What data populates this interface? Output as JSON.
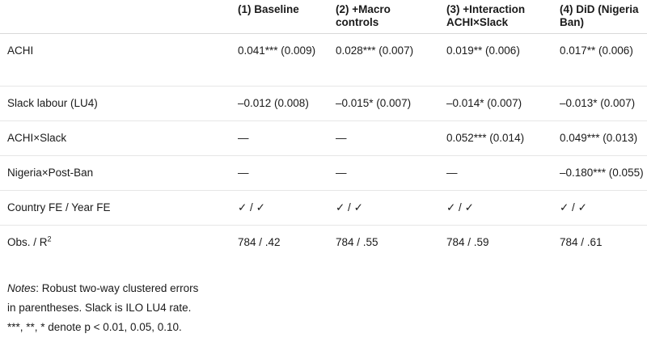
{
  "table": {
    "headers": [
      "",
      "(1) Baseline",
      "(2) +Macro controls",
      "(3) +Interaction ACHI×Slack",
      "(4) DiD (Nigeria Ban)"
    ],
    "rows": [
      {
        "label": "ACHI",
        "cells": [
          "0.041*** (0.009)",
          "0.028*** (0.007)",
          "0.019** (0.006)",
          "0.017** (0.006)"
        ]
      },
      {
        "label": "Slack labour (LU4)",
        "cells": [
          "–0.012 (0.008)",
          "–0.015* (0.007)",
          "–0.014* (0.007)",
          "–0.013* (0.007)"
        ]
      },
      {
        "label": "ACHI×Slack",
        "cells": [
          "—",
          "—",
          "0.052*** (0.014)",
          "0.049*** (0.013)"
        ]
      },
      {
        "label": "Nigeria×Post-Ban",
        "cells": [
          "—",
          "—",
          "—",
          "–0.180*** (0.055)"
        ]
      },
      {
        "label": "Country FE / Year FE",
        "cells": [
          "✓ / ✓",
          "✓ / ✓",
          "✓ / ✓",
          "✓ / ✓"
        ]
      },
      {
        "label": "Obs. / R",
        "label_sup": "2",
        "cells": [
          "784 / .42",
          "784 / .55",
          "784 / .59",
          "784 / .61"
        ]
      }
    ]
  },
  "notes": {
    "label": "Notes",
    "line1": ": Robust two-way clustered errors",
    "line2": "in parentheses. Slack is ILO LU4 rate.",
    "line3": "***, **, * denote p < 0.01, 0.05, 0.10."
  }
}
